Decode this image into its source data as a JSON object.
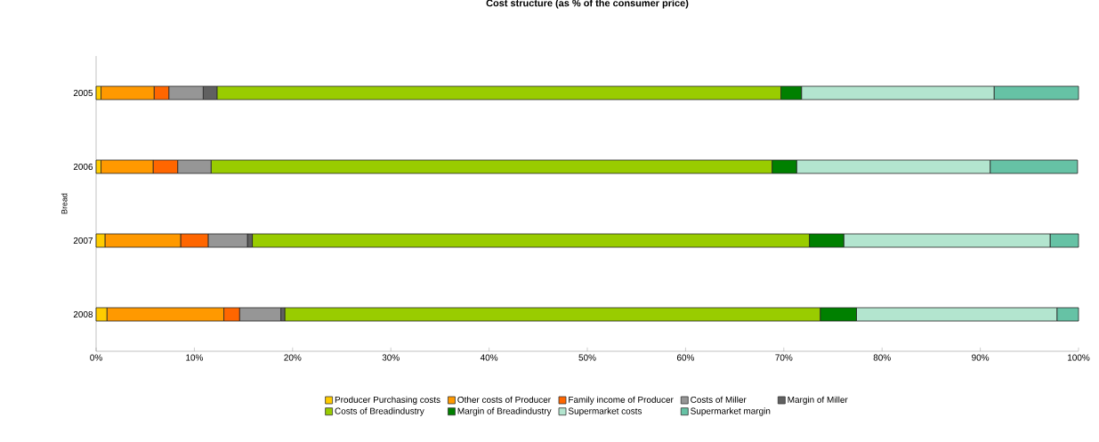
{
  "chart_data": {
    "type": "bar",
    "orientation": "horizontal",
    "stacked": true,
    "title": "Cost structure (as % of the consumer price)",
    "ylabel": "Bread",
    "categories": [
      "2005",
      "2006",
      "2007",
      "2008"
    ],
    "series": [
      {
        "name": "Producer Purchasing costs",
        "color": "#ffcc00",
        "values": [
          0.5,
          0.5,
          0.9,
          1.1
        ]
      },
      {
        "name": "Other costs of Producer",
        "color": "#ff9900",
        "values": [
          5.4,
          5.3,
          7.7,
          11.9
        ]
      },
      {
        "name": "Family income of Producer",
        "color": "#ff6600",
        "values": [
          1.5,
          2.5,
          2.8,
          1.6
        ]
      },
      {
        "name": "Costs of Miller",
        "color": "#969696",
        "values": [
          3.5,
          3.4,
          4.0,
          4.2
        ]
      },
      {
        "name": "Margin of Miller",
        "color": "#606060",
        "values": [
          1.4,
          0,
          0.5,
          0.4
        ]
      },
      {
        "name": "Costs of Breadindustry",
        "color": "#99cc00",
        "values": [
          57.4,
          57.1,
          56.7,
          54.5
        ]
      },
      {
        "name": "Margin of Breadindustry",
        "color": "#008000",
        "values": [
          2.1,
          2.5,
          3.5,
          3.7
        ]
      },
      {
        "name": "Supermarket costs",
        "color": "#b3e5cf",
        "values": [
          19.6,
          19.7,
          21.0,
          20.4
        ]
      },
      {
        "name": "Supermarket margin",
        "color": "#66c2a5",
        "values": [
          8.6,
          8.9,
          2.9,
          2.2
        ]
      }
    ],
    "xlim": [
      0,
      100
    ],
    "xticks": [
      {
        "value": 0,
        "label": "0%"
      },
      {
        "value": 10,
        "label": "10%"
      },
      {
        "value": 20,
        "label": "20%"
      },
      {
        "value": 30,
        "label": "30%"
      },
      {
        "value": 40,
        "label": "40%"
      },
      {
        "value": 50,
        "label": "50%"
      },
      {
        "value": 60,
        "label": "60%"
      },
      {
        "value": 70,
        "label": "70%"
      },
      {
        "value": 80,
        "label": "80%"
      },
      {
        "value": 90,
        "label": "90%"
      },
      {
        "value": 100,
        "label": "100%"
      }
    ],
    "legend": "bottom"
  }
}
